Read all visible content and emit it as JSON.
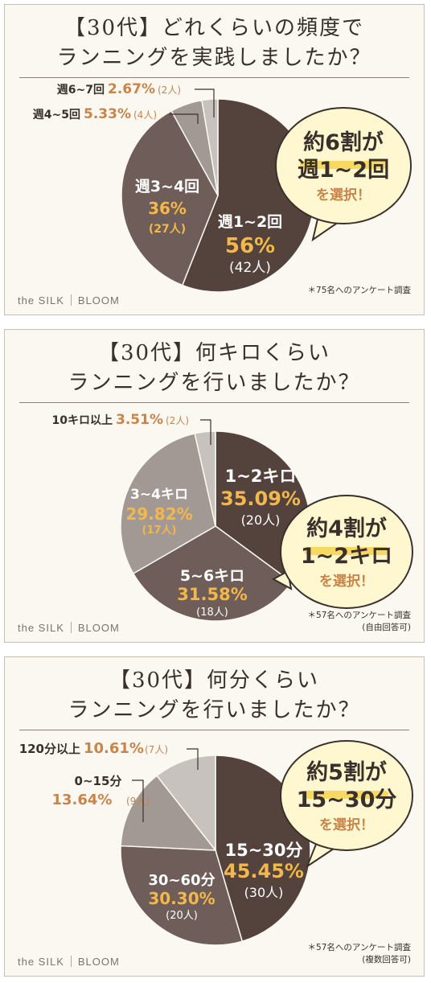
{
  "brand": {
    "name": "the SILK",
    "sub": "BLOOM"
  },
  "chart_data": [
    {
      "type": "pie",
      "title_lines": [
        "【30代】どれくらいの頻度で",
        "ランニングを実践しましたか？"
      ],
      "categories": [
        "週1~2回",
        "週3~4回",
        "週4~5回",
        "週6~7回"
      ],
      "values": [
        56,
        36,
        5.33,
        2.67
      ],
      "pct_labels": [
        "56%",
        "36%",
        "5.33%",
        "2.67%"
      ],
      "counts": [
        "(42人)",
        "(27人)",
        "(4人)",
        "(2人)"
      ],
      "colors": [
        "#54423d",
        "#6e5d58",
        "#a29995",
        "#c8c2be"
      ],
      "note_lines": [
        "＊75名へのアンケート調査"
      ],
      "bubble": {
        "top": "約6割が",
        "middle": "週1~2回",
        "bottom": "を選択！"
      }
    },
    {
      "type": "pie",
      "title_lines": [
        "【30代】何キロくらい",
        "ランニングを行いましたか？"
      ],
      "categories": [
        "1~2キロ",
        "5~6キロ",
        "3~4キロ",
        "10キロ以上"
      ],
      "values": [
        35.09,
        31.58,
        29.82,
        3.51
      ],
      "pct_labels": [
        "35.09%",
        "31.58%",
        "29.82%",
        "3.51%"
      ],
      "counts": [
        "(20人)",
        "(18人)",
        "(17人)",
        "(2人)"
      ],
      "colors": [
        "#54423d",
        "#6e5d58",
        "#a29995",
        "#c8c2be"
      ],
      "note_lines": [
        "＊57名へのアンケート調査",
        "(自由回答可)"
      ],
      "bubble": {
        "top": "約4割が",
        "middle": "1~2キロ",
        "bottom": "を選択！"
      }
    },
    {
      "type": "pie",
      "title_lines": [
        "【30代】何分くらい",
        "ランニングを行いましたか？"
      ],
      "categories": [
        "15~30分",
        "30~60分",
        "0~15分",
        "120分以上"
      ],
      "values": [
        45.45,
        30.3,
        13.64,
        10.61
      ],
      "pct_labels": [
        "45.45%",
        "30.30%",
        "13.64%",
        "10.61%"
      ],
      "counts": [
        "(30人)",
        "(20人)",
        "(9人)",
        "(7人)"
      ],
      "colors": [
        "#54423d",
        "#6e5d58",
        "#a29995",
        "#c8c2be"
      ],
      "note_lines": [
        "＊57名へのアンケート調査",
        "(複数回答可)"
      ],
      "bubble": {
        "top": "約5割が",
        "middle": "15~30分",
        "bottom": "を選択！"
      }
    }
  ]
}
